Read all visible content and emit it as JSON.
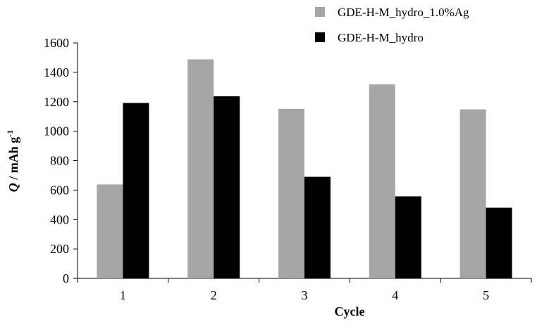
{
  "chart_data": {
    "type": "bar",
    "title": "",
    "xlabel": "Cycle",
    "ylabel_italic": "Q",
    "ylabel_main": " / mAh g",
    "ylabel_sup": "-1",
    "categories": [
      "1",
      "2",
      "3",
      "4",
      "5"
    ],
    "ylim": [
      0,
      1600
    ],
    "yticks": [
      "0",
      "200",
      "400",
      "600",
      "800",
      "1000",
      "1200",
      "1400",
      "1600"
    ],
    "grid": false,
    "legend_position": "top-right",
    "series": [
      {
        "name": "GDE-H-M_hydro_1.0%Ag",
        "color": "#a6a6a6",
        "values": [
          638,
          1488,
          1152,
          1318,
          1148
        ]
      },
      {
        "name": "GDE-H-M_hydro",
        "color": "#000000",
        "values": [
          1192,
          1237,
          690,
          557,
          480
        ]
      }
    ]
  }
}
